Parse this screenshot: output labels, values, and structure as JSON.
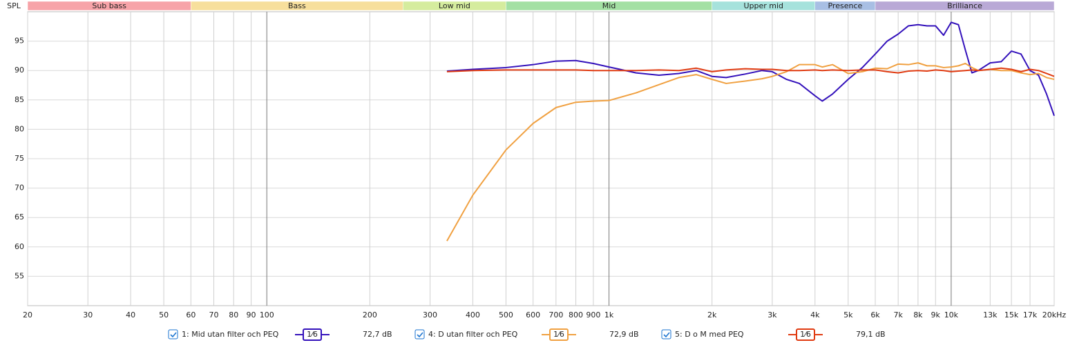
{
  "chart_data": {
    "type": "line",
    "y_label": "SPL",
    "xscale": "log",
    "xlim": [
      20,
      20000
    ],
    "ylim": [
      50,
      100
    ],
    "grid": true,
    "yticks": [
      55,
      60,
      65,
      70,
      75,
      80,
      85,
      90,
      95
    ],
    "xticks": [
      20,
      30,
      40,
      50,
      60,
      70,
      80,
      90,
      100,
      200,
      300,
      400,
      500,
      600,
      700,
      800,
      900,
      {
        "value": 1000,
        "label": "1k"
      },
      {
        "value": 2000,
        "label": "2k"
      },
      {
        "value": 3000,
        "label": "3k"
      },
      {
        "value": 4000,
        "label": "4k"
      },
      {
        "value": 5000,
        "label": "5k"
      },
      {
        "value": 6000,
        "label": "6k"
      },
      {
        "value": 7000,
        "label": "7k"
      },
      {
        "value": 8000,
        "label": "8k"
      },
      {
        "value": 9000,
        "label": "9k"
      },
      {
        "value": 10000,
        "label": "10k"
      },
      {
        "value": 13000,
        "label": "13k"
      },
      {
        "value": 15000,
        "label": "15k"
      },
      {
        "value": 17000,
        "label": "17k"
      },
      {
        "value": 20000,
        "label": "20kHz"
      }
    ],
    "bands": [
      {
        "name": "Sub bass",
        "start": 20,
        "end": 60,
        "color": "#f7a3a8"
      },
      {
        "name": "Bass",
        "start": 60,
        "end": 250,
        "color": "#f7df9c"
      },
      {
        "name": "Low mid",
        "start": 250,
        "end": 500,
        "color": "#d5ec9e"
      },
      {
        "name": "Mid",
        "start": 500,
        "end": 2000,
        "color": "#a3e0a3"
      },
      {
        "name": "Upper mid",
        "start": 2000,
        "end": 4000,
        "color": "#a6e2dc"
      },
      {
        "name": "Presence",
        "start": 4000,
        "end": 6000,
        "color": "#a8bfe4"
      },
      {
        "name": "Brilliance",
        "start": 6000,
        "end": 20000,
        "color": "#b9a9d6"
      }
    ],
    "x": [
      336,
      400,
      500,
      600,
      700,
      800,
      900,
      1000,
      1200,
      1400,
      1600,
      1800,
      2000,
      2200,
      2500,
      2800,
      3000,
      3300,
      3600,
      4000,
      4200,
      4500,
      5000,
      5500,
      6000,
      6500,
      7000,
      7500,
      8000,
      8500,
      9000,
      9500,
      10000,
      10500,
      11000,
      11500,
      12000,
      13000,
      14000,
      15000,
      16000,
      17000,
      18000,
      19000,
      20000
    ],
    "series": [
      {
        "name": "1: Mid utan filter och PEQ",
        "color": "#3311bb",
        "smoothing": "1⁄6",
        "level": "72,7 dB",
        "values": [
          89.9,
          90.2,
          90.5,
          91.0,
          91.6,
          91.7,
          91.2,
          90.6,
          89.6,
          89.2,
          89.5,
          90.0,
          89.0,
          88.8,
          89.4,
          90.0,
          89.8,
          88.5,
          87.8,
          85.7,
          84.8,
          86.0,
          88.5,
          90.5,
          92.8,
          95.0,
          96.2,
          97.6,
          97.8,
          97.6,
          97.6,
          96.0,
          98.2,
          97.8,
          93.5,
          89.6,
          90.0,
          91.3,
          91.5,
          93.3,
          92.8,
          90.0,
          89.2,
          86.0,
          82.3
        ]
      },
      {
        "name": "4: D utan filter och PEQ",
        "color": "#f0a040",
        "smoothing": "1⁄6",
        "level": "72,9 dB",
        "values": [
          61.0,
          68.8,
          76.5,
          81.0,
          83.7,
          84.6,
          84.8,
          84.9,
          86.2,
          87.6,
          88.8,
          89.3,
          88.5,
          87.8,
          88.2,
          88.6,
          89.0,
          89.8,
          91.0,
          91.0,
          90.6,
          91.0,
          89.5,
          89.8,
          90.4,
          90.3,
          91.1,
          91.0,
          91.3,
          90.8,
          90.8,
          90.5,
          90.6,
          90.8,
          91.2,
          90.5,
          90.0,
          90.2,
          90.0,
          90.0,
          89.6,
          89.3,
          89.5,
          88.8,
          88.5
        ]
      },
      {
        "name": "5: D o M med PEQ",
        "color": "#e03a10",
        "smoothing": "1⁄6",
        "level": "79,1 dB",
        "values": [
          89.8,
          90.0,
          90.1,
          90.1,
          90.1,
          90.1,
          90.0,
          90.0,
          90.0,
          90.1,
          90.0,
          90.4,
          89.8,
          90.1,
          90.3,
          90.2,
          90.2,
          90.0,
          90.0,
          90.1,
          90.0,
          90.1,
          90.0,
          90.1,
          90.1,
          89.8,
          89.6,
          89.9,
          90.0,
          89.9,
          90.1,
          90.0,
          89.8,
          89.9,
          90.0,
          90.1,
          90.0,
          90.2,
          90.4,
          90.2,
          89.8,
          90.2,
          90.0,
          89.5,
          89.0
        ]
      }
    ]
  }
}
